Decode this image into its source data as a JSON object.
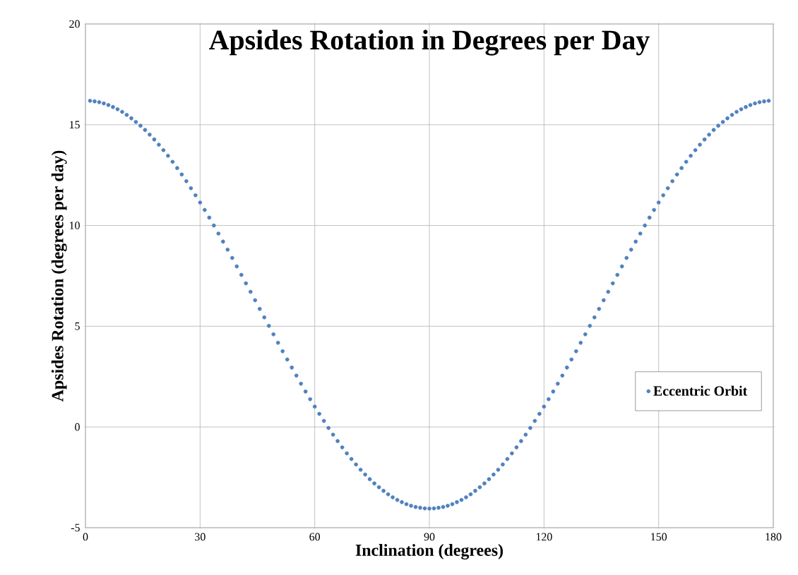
{
  "chart_data": {
    "type": "scatter",
    "title": "Apsides Rotation in Degrees per Day",
    "xlabel": "Inclination (degrees)",
    "ylabel": "Apsides Rotation (degrees per day)",
    "xlim": [
      0,
      180
    ],
    "ylim": [
      -5,
      20
    ],
    "xticks": [
      0,
      30,
      60,
      90,
      120,
      150,
      180
    ],
    "yticks": [
      -5,
      0,
      5,
      10,
      15,
      20
    ],
    "grid": true,
    "legend": "right",
    "x": [
      1.2,
      2.4,
      3.6,
      4.8,
      6,
      7.2,
      8.4,
      9.6,
      10.8,
      12,
      13.2,
      14.4,
      15.6,
      16.8,
      18,
      19.2,
      20.4,
      21.6,
      22.8,
      24,
      25.2,
      26.4,
      27.6,
      28.8,
      30,
      31.2,
      32.4,
      33.6,
      34.8,
      36,
      37.2,
      38.4,
      39.6,
      40.8,
      42,
      43.2,
      44.4,
      45.6,
      46.8,
      48,
      49.2,
      50.4,
      51.6,
      52.8,
      54,
      55.2,
      56.4,
      57.6,
      58.8,
      60,
      61.2,
      62.4,
      63.6,
      64.8,
      66,
      67.2,
      68.4,
      69.6,
      70.8,
      72,
      73.2,
      74.4,
      75.6,
      76.8,
      78,
      79.2,
      80.4,
      81.6,
      82.8,
      84,
      85.2,
      86.4,
      87.6,
      88.8,
      90,
      91.2,
      92.4,
      93.6,
      94.8,
      96,
      97.2,
      98.4,
      99.6,
      100.8,
      102,
      103.2,
      104.4,
      105.6,
      106.8,
      108,
      109.2,
      110.4,
      111.6,
      112.8,
      114,
      115.2,
      116.4,
      117.6,
      118.8,
      120,
      121.2,
      122.4,
      123.6,
      124.8,
      126,
      127.2,
      128.4,
      129.6,
      130.8,
      132,
      133.2,
      134.4,
      135.6,
      136.8,
      138,
      139.2,
      140.4,
      141.6,
      142.8,
      144,
      145.2,
      146.4,
      147.6,
      148.8,
      150,
      151.2,
      152.4,
      153.6,
      154.8,
      156,
      157.2,
      158.4,
      159.6,
      160.8,
      162,
      163.2,
      164.4,
      165.6,
      166.8,
      168,
      169.2,
      170.4,
      171.6,
      172.8,
      174,
      175.2,
      176.4,
      177.6,
      178.8
    ],
    "series": [
      {
        "name": "Eccentric Orbit",
        "color": "#4f81bd",
        "values": [
          16.19,
          16.16,
          16.12,
          16.06,
          15.98,
          15.88,
          15.77,
          15.64,
          15.49,
          15.32,
          15.14,
          14.95,
          14.74,
          14.51,
          14.27,
          14.01,
          13.74,
          13.46,
          13.16,
          12.85,
          12.53,
          12.2,
          11.85,
          11.5,
          11.14,
          10.77,
          10.39,
          10.0,
          9.6,
          9.2,
          8.8,
          8.39,
          7.97,
          7.55,
          7.13,
          6.71,
          6.29,
          5.86,
          5.44,
          5.02,
          4.6,
          4.18,
          3.76,
          3.35,
          2.95,
          2.55,
          2.15,
          1.76,
          1.38,
          1.01,
          0.65,
          0.3,
          -0.05,
          -0.38,
          -0.7,
          -1.01,
          -1.31,
          -1.59,
          -1.86,
          -2.12,
          -2.36,
          -2.59,
          -2.8,
          -2.99,
          -3.17,
          -3.34,
          -3.49,
          -3.62,
          -3.73,
          -3.83,
          -3.91,
          -3.97,
          -4.01,
          -4.04,
          -4.05,
          -4.04,
          -4.01,
          -3.97,
          -3.91,
          -3.83,
          -3.73,
          -3.62,
          -3.49,
          -3.34,
          -3.17,
          -2.99,
          -2.8,
          -2.59,
          -2.36,
          -2.12,
          -1.86,
          -1.59,
          -1.31,
          -1.01,
          -0.7,
          -0.38,
          -0.05,
          0.3,
          0.65,
          1.01,
          1.38,
          1.76,
          2.15,
          2.55,
          2.95,
          3.35,
          3.76,
          4.18,
          4.6,
          5.02,
          5.44,
          5.86,
          6.29,
          6.71,
          7.13,
          7.55,
          7.97,
          8.39,
          8.8,
          9.2,
          9.6,
          10.0,
          10.39,
          10.77,
          11.14,
          11.5,
          11.85,
          12.2,
          12.53,
          12.85,
          13.16,
          13.46,
          13.74,
          14.01,
          14.27,
          14.51,
          14.74,
          14.95,
          15.14,
          15.32,
          15.49,
          15.64,
          15.77,
          15.88,
          15.98,
          16.06,
          16.12,
          16.16,
          16.19
        ]
      }
    ]
  }
}
